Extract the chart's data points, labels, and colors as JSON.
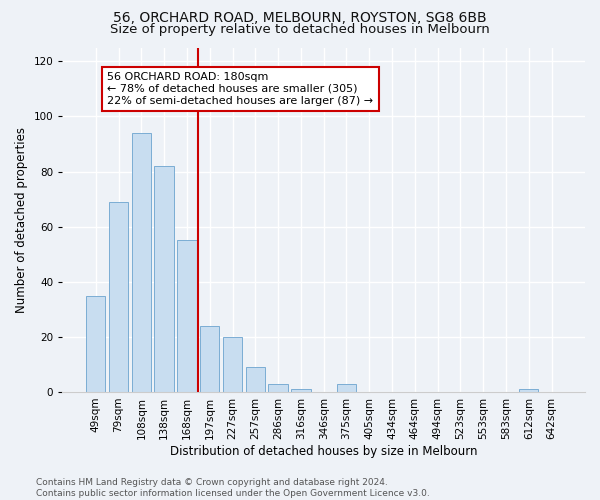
{
  "title1": "56, ORCHARD ROAD, MELBOURN, ROYSTON, SG8 6BB",
  "title2": "Size of property relative to detached houses in Melbourn",
  "xlabel": "Distribution of detached houses by size in Melbourn",
  "ylabel": "Number of detached properties",
  "bar_labels": [
    "49sqm",
    "79sqm",
    "108sqm",
    "138sqm",
    "168sqm",
    "197sqm",
    "227sqm",
    "257sqm",
    "286sqm",
    "316sqm",
    "346sqm",
    "375sqm",
    "405sqm",
    "434sqm",
    "464sqm",
    "494sqm",
    "523sqm",
    "553sqm",
    "583sqm",
    "612sqm",
    "642sqm"
  ],
  "bar_values": [
    35,
    69,
    94,
    82,
    55,
    24,
    20,
    9,
    3,
    1,
    0,
    3,
    0,
    0,
    0,
    0,
    0,
    0,
    0,
    1,
    0
  ],
  "bar_color": "#c8ddf0",
  "bar_edge_color": "#7badd4",
  "vline_x": 4.5,
  "vline_color": "#cc0000",
  "annotation_line1": "56 ORCHARD ROAD: 180sqm",
  "annotation_line2": "← 78% of detached houses are smaller (305)",
  "annotation_line3": "22% of semi-detached houses are larger (87) →",
  "annotation_box_color": "#cc0000",
  "ylim": [
    0,
    125
  ],
  "yticks": [
    0,
    20,
    40,
    60,
    80,
    100,
    120
  ],
  "background_color": "#eef2f7",
  "grid_color": "#ffffff",
  "footer_text": "Contains HM Land Registry data © Crown copyright and database right 2024.\nContains public sector information licensed under the Open Government Licence v3.0.",
  "title_fontsize": 10,
  "subtitle_fontsize": 9.5,
  "axis_label_fontsize": 8.5,
  "tick_fontsize": 7.5,
  "footer_fontsize": 6.5,
  "annot_fontsize": 8
}
